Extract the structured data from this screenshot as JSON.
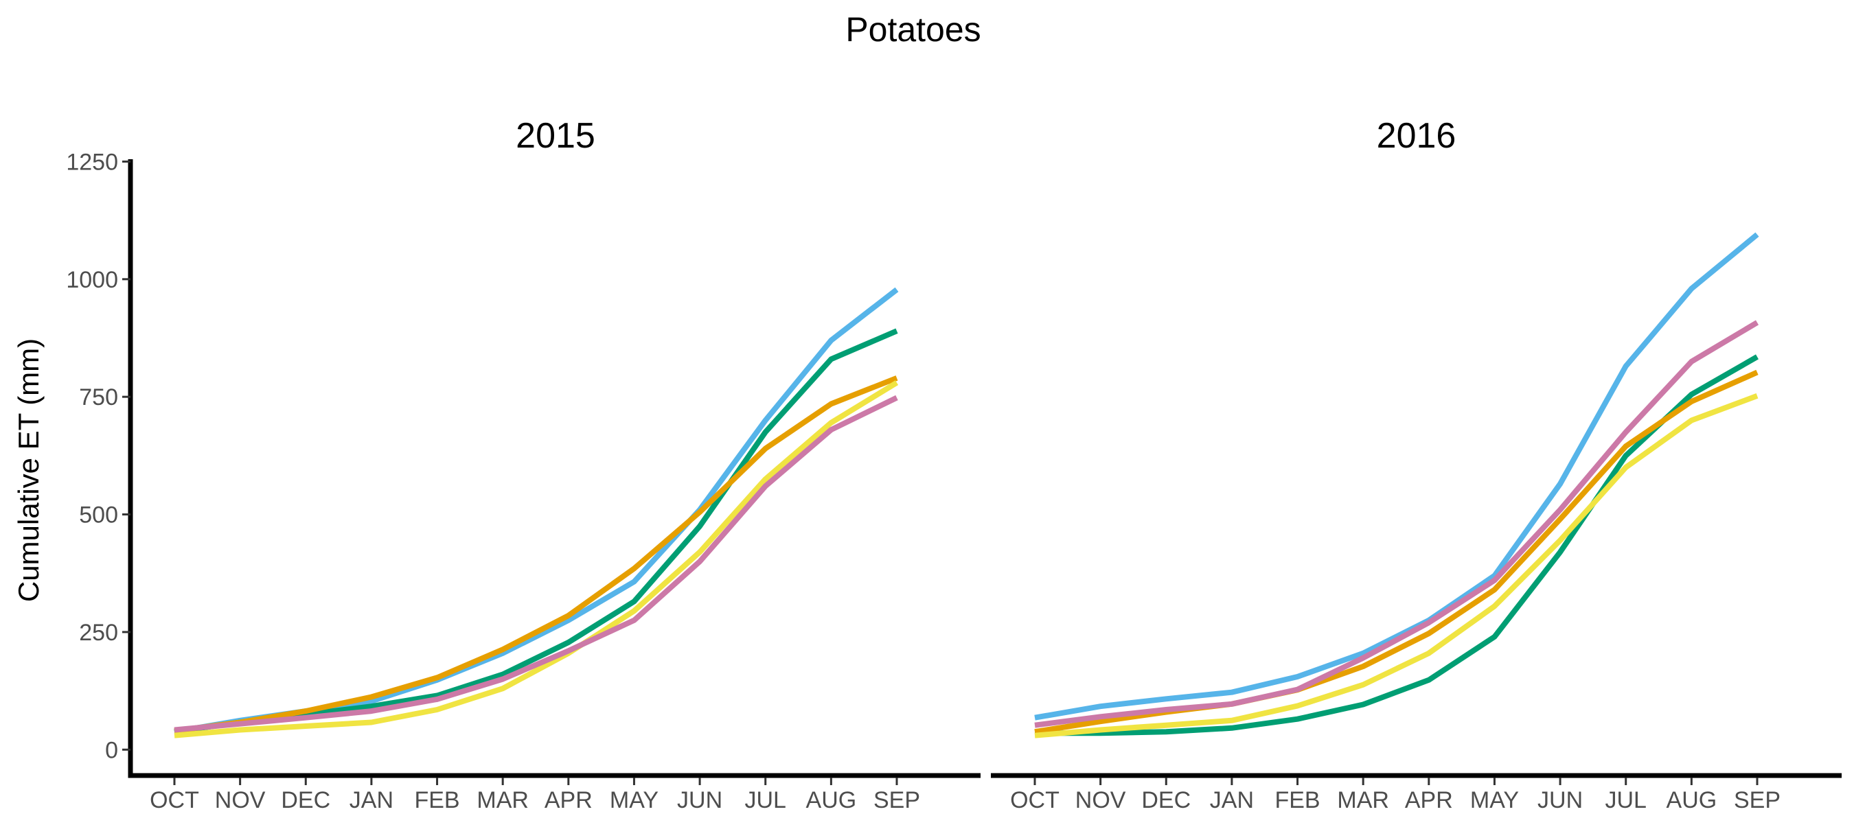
{
  "title": "Potatoes",
  "ylabel": "Cumulative ET (mm)",
  "colors": {
    "blue": "#56B4E9",
    "green": "#009E73",
    "orange": "#E69F00",
    "yellow": "#F0E442",
    "pink": "#CC79A7"
  },
  "chart_data": [
    {
      "type": "line",
      "title": "2015",
      "xlabel": "",
      "ylabel": "Cumulative ET (mm)",
      "categories": [
        "OCT",
        "NOV",
        "DEC",
        "JAN",
        "FEB",
        "MAR",
        "APR",
        "MAY",
        "JUN",
        "JUL",
        "AUG",
        "SEP"
      ],
      "yticks": [
        0,
        250,
        500,
        750,
        1000,
        1250
      ],
      "ylim": [
        -55,
        1255
      ],
      "grid": false,
      "legend": "none",
      "series": [
        {
          "color": "#56B4E9",
          "values": [
            38,
            62,
            82,
            103,
            148,
            205,
            275,
            357,
            510,
            700,
            870,
            978
          ]
        },
        {
          "color": "#009E73",
          "values": [
            38,
            58,
            75,
            92,
            115,
            160,
            228,
            315,
            475,
            675,
            830,
            890
          ]
        },
        {
          "color": "#E69F00",
          "values": [
            40,
            58,
            82,
            112,
            153,
            213,
            285,
            385,
            505,
            640,
            735,
            790
          ]
        },
        {
          "color": "#F0E442",
          "values": [
            30,
            42,
            50,
            58,
            85,
            130,
            205,
            295,
            420,
            575,
            695,
            780
          ]
        },
        {
          "color": "#CC79A7",
          "values": [
            42,
            55,
            68,
            82,
            107,
            150,
            210,
            275,
            400,
            560,
            680,
            748
          ]
        }
      ]
    },
    {
      "type": "line",
      "title": "2016",
      "xlabel": "",
      "ylabel": "",
      "categories": [
        "OCT",
        "NOV",
        "DEC",
        "JAN",
        "FEB",
        "MAR",
        "APR",
        "MAY",
        "JUN",
        "JUL",
        "AUG",
        "SEP"
      ],
      "yticks": [
        0,
        250,
        500,
        750,
        1000,
        1250
      ],
      "ylim": [
        -55,
        1255
      ],
      "grid": false,
      "legend": "none",
      "series": [
        {
          "color": "#56B4E9",
          "values": [
            68,
            92,
            108,
            122,
            155,
            205,
            275,
            370,
            565,
            815,
            980,
            1095
          ]
        },
        {
          "color": "#009E73",
          "values": [
            35,
            35,
            38,
            46,
            65,
            96,
            148,
            240,
            420,
            625,
            755,
            835
          ]
        },
        {
          "color": "#E69F00",
          "values": [
            38,
            60,
            80,
            97,
            127,
            177,
            247,
            340,
            490,
            645,
            740,
            802
          ]
        },
        {
          "color": "#F0E442",
          "values": [
            30,
            42,
            52,
            62,
            93,
            138,
            205,
            305,
            445,
            600,
            700,
            752
          ]
        },
        {
          "color": "#CC79A7",
          "values": [
            52,
            70,
            85,
            97,
            128,
            195,
            270,
            360,
            510,
            675,
            825,
            908
          ]
        }
      ]
    }
  ]
}
